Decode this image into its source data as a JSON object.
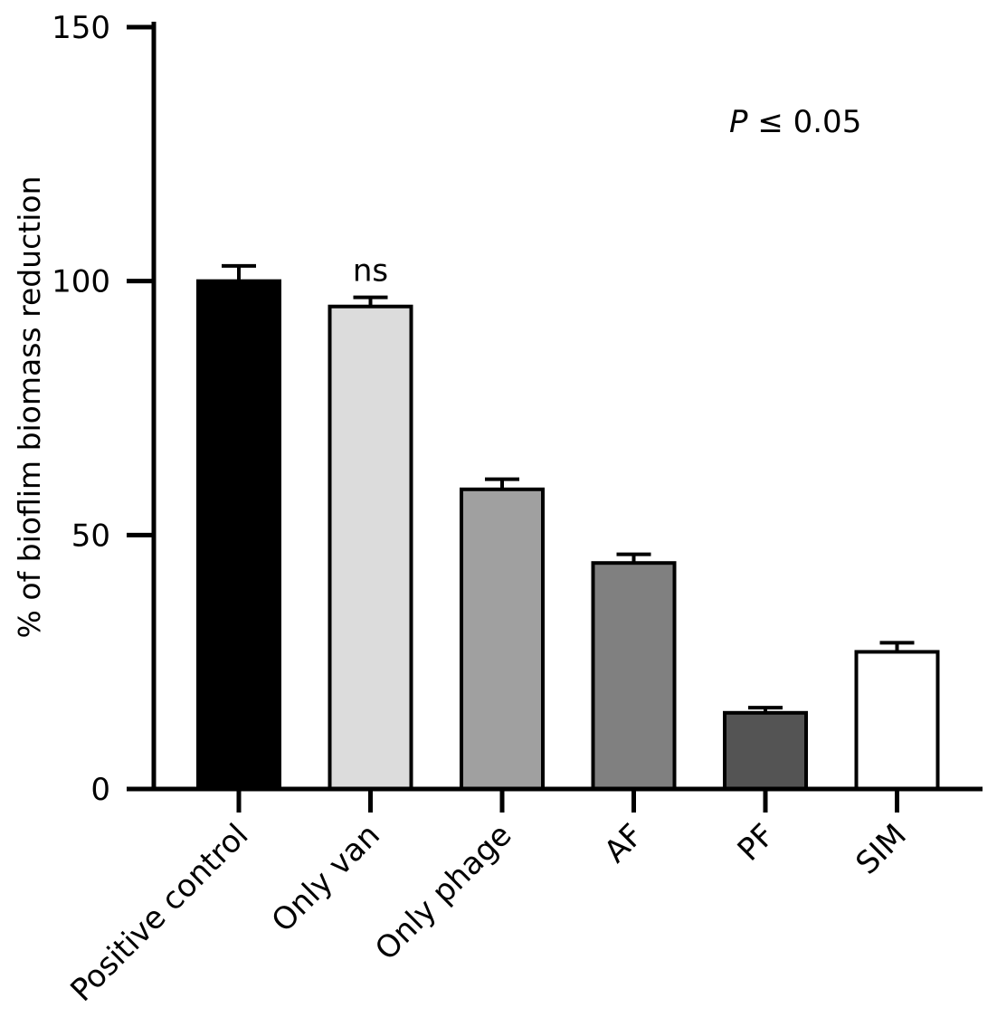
{
  "chart_data": {
    "type": "bar",
    "title": "",
    "xlabel": "",
    "ylabel": "% of bioflim biomass reduction",
    "ylim": [
      0,
      150
    ],
    "yticks": [
      0,
      50,
      100,
      150
    ],
    "grid": false,
    "categories": [
      "Positive control",
      "Only van",
      "Only phage",
      "AF",
      "PF",
      "SIM"
    ],
    "values": [
      100,
      95,
      59,
      44.5,
      15,
      27
    ],
    "error_upper": [
      3,
      1.8,
      2,
      1.7,
      1,
      1.8
    ],
    "colors": [
      "#000000",
      "#dcdcdc",
      "#a0a0a0",
      "#808080",
      "#545454",
      "#ffffff"
    ],
    "bar_annotations": [
      {
        "category": "Only van",
        "text": "ns"
      }
    ],
    "annotation": {
      "p_symbol": "P",
      "p_text": " ≤ 0.05"
    }
  }
}
